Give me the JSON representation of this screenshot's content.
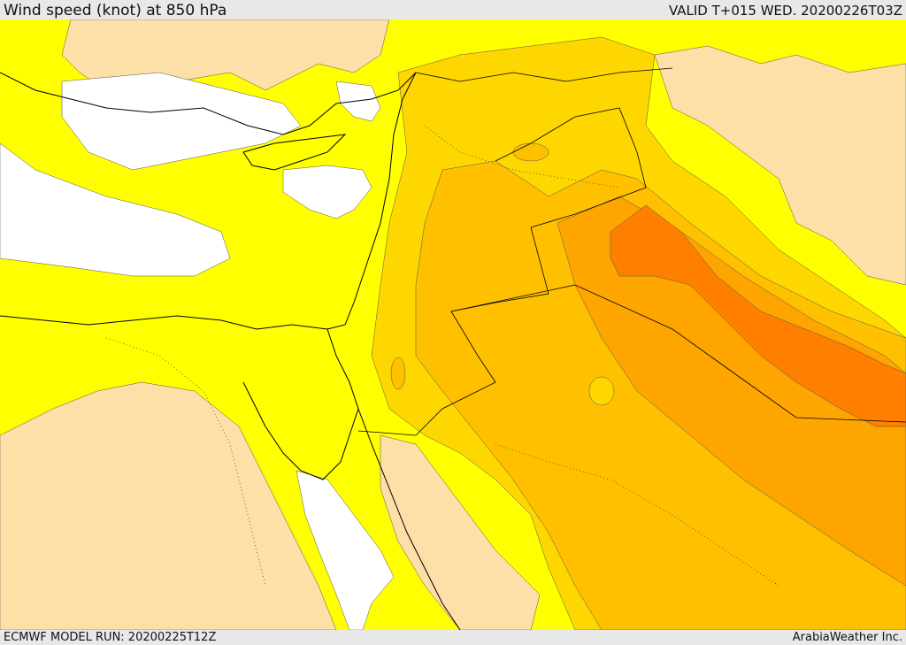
{
  "header": {
    "title": "Wind speed (knot) at 850 hPa",
    "valid": "VALID T+015 WED. 20200226T03Z"
  },
  "footer": {
    "model_run": "ECMWF MODEL RUN: 20200225T12Z",
    "credit": "ArabiaWeather Inc."
  },
  "colors": {
    "calm_white": "#ffffff",
    "light_peach": "#fde0a8",
    "yellow": "#ffff00",
    "gold": "#ffd700",
    "amber": "#ffc000",
    "orange": "#ffa500",
    "deep_orange": "#ff7f00",
    "coastline": "#000000"
  }
}
